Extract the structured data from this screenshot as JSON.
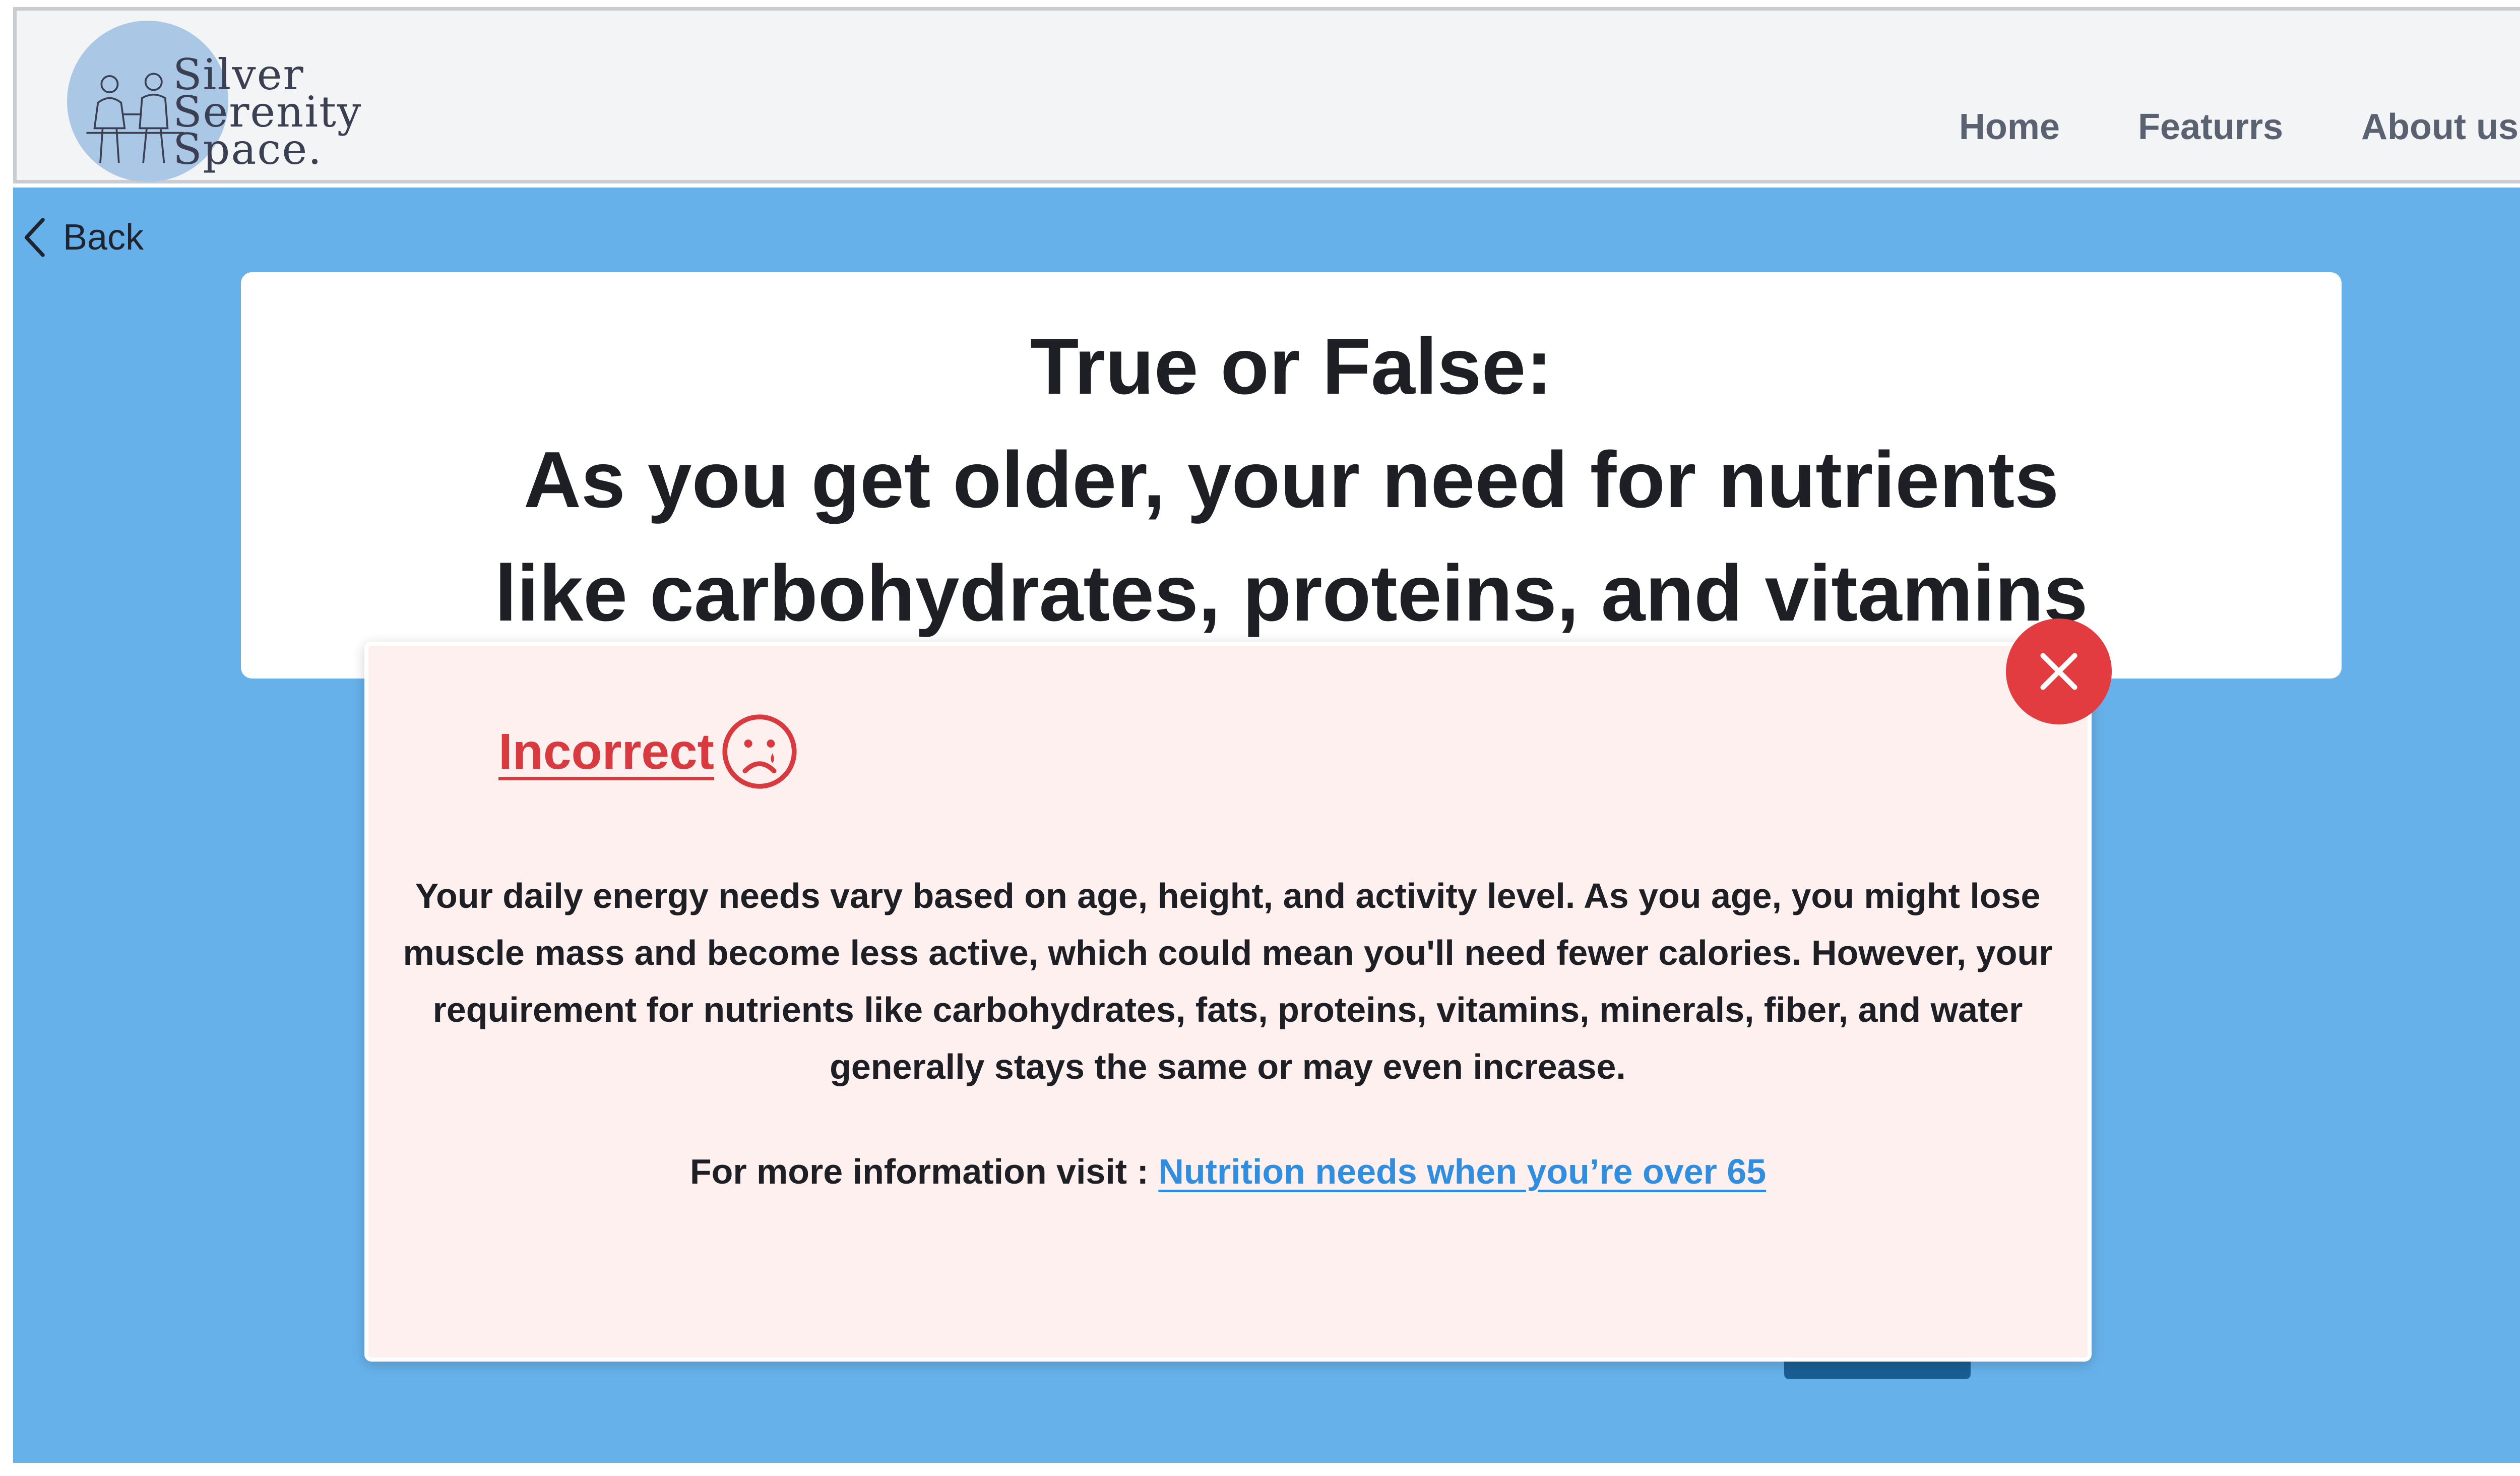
{
  "header": {
    "logo_lines": [
      "Silver",
      "Serenity",
      "Space."
    ],
    "nav": {
      "home": "Home",
      "features": "Featurrs",
      "about": "About us"
    }
  },
  "back_label": "Back",
  "question": {
    "title": "True or False:",
    "text": "As you get older, your need for nutrients like carbohydrates, proteins, and vitamins"
  },
  "feedback": {
    "result": "Incorrect",
    "explanation": "Your daily energy needs vary based on age, height, and activity level. As you age, you might lose muscle mass and become less active, which could mean you'll need fewer calories. However, your requirement for nutrients like carbohydrates, fats, proteins, vitamins, minerals, fiber, and water generally stays the same or may even increase.",
    "more_info_prefix": "For more information visit : ",
    "more_info_link": "Nutrition needs when you’re over 65"
  },
  "colors": {
    "main_background": "#67b1ea",
    "popup_background": "#fdf0ef",
    "incorrect": "#d83a3f",
    "close_button": "#e23c41",
    "link": "#2f8ee0"
  },
  "icons": {
    "back": "chevron-left-icon",
    "result": "sad-face-icon",
    "close": "close-icon"
  }
}
